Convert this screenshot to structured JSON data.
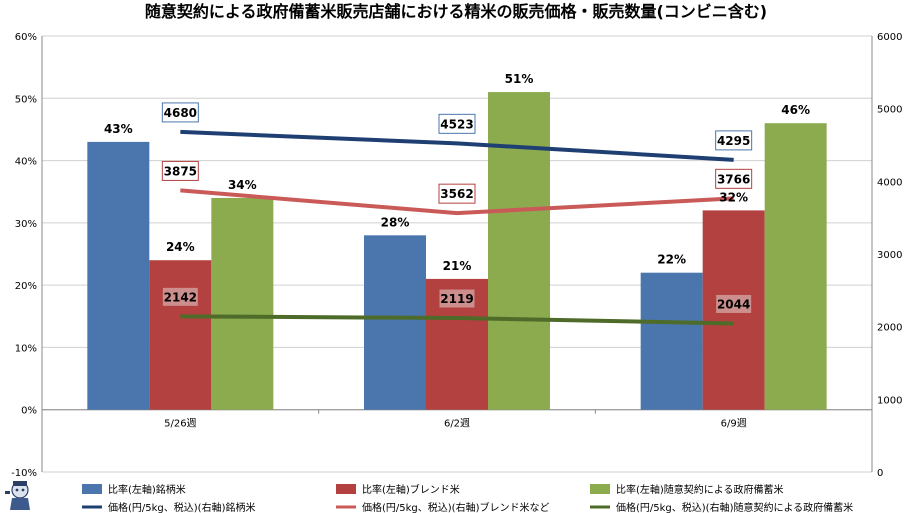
{
  "chart_data": {
    "type": "bar",
    "title": "随意契約による政府備蓄米販売店舗における精米の販売価格・販売数量(コンビニ含む)",
    "categories": [
      "5/26週",
      "6/2週",
      "6/9週"
    ],
    "y_left": {
      "min": -0.1,
      "max": 0.6,
      "step": 0.1,
      "tick_labels": [
        "-10%",
        "0%",
        "10%",
        "20%",
        "30%",
        "40%",
        "50%",
        "60%"
      ]
    },
    "y_right": {
      "min": 0,
      "max": 6000,
      "step": 1000,
      "tick_labels": [
        "0",
        "1000",
        "2000",
        "3000",
        "4000",
        "5000",
        "6000"
      ]
    },
    "grid": true,
    "legend_position": "bottom",
    "series": [
      {
        "name": "比率(左軸)銘柄米",
        "kind": "bar",
        "axis": "left",
        "color": "#4a76ad",
        "values": [
          0.43,
          0.28,
          0.22
        ],
        "labels": [
          "43%",
          "28%",
          "22%"
        ]
      },
      {
        "name": "比率(左軸)ブレンド米",
        "kind": "bar",
        "axis": "left",
        "color": "#b3413f",
        "values": [
          0.24,
          0.21,
          0.32
        ],
        "labels": [
          "24%",
          "21%",
          "32%"
        ]
      },
      {
        "name": "比率(左軸)随意契約による政府備蓄米",
        "kind": "bar",
        "axis": "left",
        "color": "#8bab4e",
        "values": [
          0.34,
          0.51,
          0.46
        ],
        "labels": [
          "34%",
          "51%",
          "46%"
        ]
      },
      {
        "name": "価格(円/5kg、税込)(右軸)銘柄米",
        "kind": "line",
        "axis": "right",
        "color": "#1f3f73",
        "label_border": "#4a76ad",
        "label_fill": "#ffffff",
        "values": [
          4680,
          4523,
          4295
        ],
        "labels": [
          "4680",
          "4523",
          "4295"
        ]
      },
      {
        "name": "価格(円/5kg、税込)(右軸)ブレンド米など",
        "kind": "line",
        "axis": "right",
        "color": "#c95a57",
        "label_border": "#b3413f",
        "label_fill": "#ffffff",
        "values": [
          3875,
          3562,
          3766
        ],
        "labels": [
          "3875",
          "3562",
          "3766"
        ]
      },
      {
        "name": "価格(円/5kg、税込)(右軸)随意契約による政府備蓄米",
        "kind": "line",
        "axis": "right",
        "color": "#4e6b2a",
        "label_border": "#b3413f",
        "label_fill": "#cc8f8d",
        "values": [
          2142,
          2119,
          2044
        ],
        "labels": [
          "2142",
          "2119",
          "2044"
        ]
      }
    ]
  },
  "logo_icon": "character-mascot-icon"
}
